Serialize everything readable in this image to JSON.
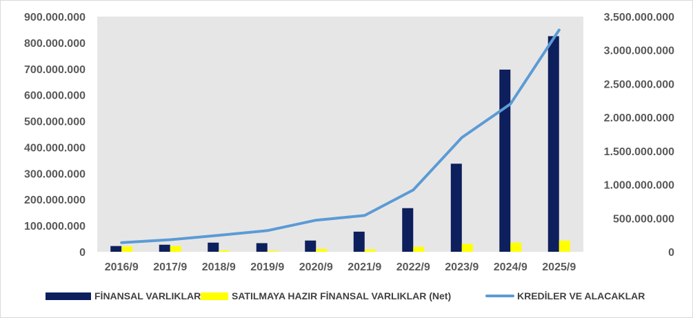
{
  "chart_data": {
    "type": "bar",
    "categories": [
      "2016/9",
      "2017/9",
      "2018/9",
      "2019/9",
      "2020/9",
      "2021/9",
      "2022/9",
      "2023/9",
      "2024/9",
      "2025/9"
    ],
    "series": [
      {
        "name": "FİNANSAL VARLIKLAR",
        "type": "bar",
        "axis": "left",
        "color": "#0d1f5c",
        "values": [
          22000000,
          27000000,
          35000000,
          33000000,
          43000000,
          77000000,
          167000000,
          337000000,
          697000000,
          825000000
        ]
      },
      {
        "name": "SATILMAYA HAZIR FİNANSAL VARLIKLAR (Net)",
        "type": "bar",
        "axis": "left",
        "color": "#ffff00",
        "values": [
          20000000,
          22000000,
          5000000,
          4000000,
          11000000,
          9000000,
          19000000,
          30000000,
          35000000,
          43000000
        ]
      },
      {
        "name": "KREDİLER VE ALACAKLAR",
        "type": "line",
        "axis": "right",
        "color": "#5b9bd5",
        "values": [
          135000000,
          180000000,
          245000000,
          315000000,
          470000000,
          540000000,
          920000000,
          1700000000,
          2200000000,
          3300000000
        ]
      }
    ],
    "ylim_left": [
      0,
      900000000
    ],
    "ylim_right": [
      0,
      3500000000
    ],
    "yticks_left": [
      "0",
      "100.000.000",
      "200.000.000",
      "300.000.000",
      "400.000.000",
      "500.000.000",
      "600.000.000",
      "700.000.000",
      "800.000.000",
      "900.000.000"
    ],
    "yticks_right": [
      "0",
      "500.000.000",
      "1.000.000.000",
      "1.500.000.000",
      "2.000.000.000",
      "2.500.000.000",
      "3.000.000.000",
      "3.500.000.000"
    ],
    "plot_background": "#e7e6e6",
    "grid": false,
    "legend_position": "bottom"
  }
}
